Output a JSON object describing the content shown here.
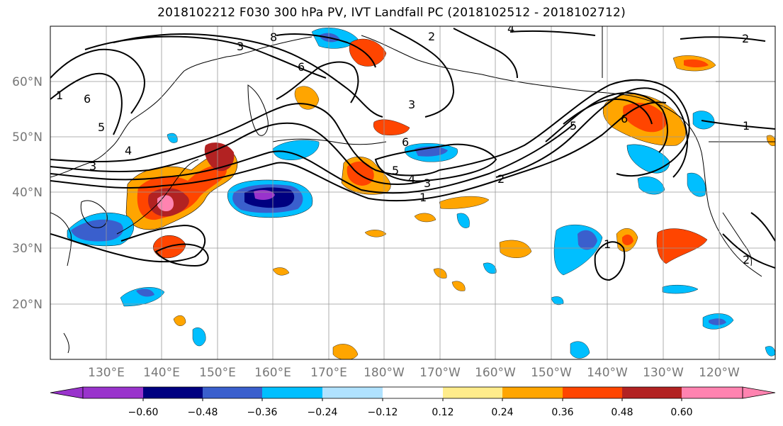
{
  "title": "2018102212 F030 300 hPa PV, IVT Landfall PC (2018102512 - 2018102712)",
  "lat_labels": [
    "60°N",
    "50°N",
    "40°N",
    "30°N",
    "20°N"
  ],
  "lon_labels": [
    "130°E",
    "140°E",
    "150°E",
    "160°E",
    "170°E",
    "180°W",
    "170°W",
    "160°W",
    "150°W",
    "140°W",
    "130°W",
    "120°W"
  ],
  "contour_labels": [
    "2",
    "4",
    "2",
    "3",
    "8",
    "6",
    "3",
    "6",
    "3",
    "5",
    "5",
    "4",
    "3",
    "2",
    "1",
    "6",
    "5",
    "4",
    "1",
    "2",
    "1",
    "6",
    "1"
  ],
  "colorbar": {
    "ticks": [
      "−0.60",
      "−0.48",
      "−0.36",
      "−0.24",
      "−0.12",
      "0.12",
      "0.24",
      "0.36",
      "0.48",
      "0.60"
    ],
    "colors": [
      "#9933cc",
      "#000080",
      "#3a5fcd",
      "#00bfff",
      "#b0e2ff",
      "#ffffff",
      "#ffec8b",
      "#ffa500",
      "#ff4500",
      "#b22222",
      "#ff83b0"
    ]
  },
  "shading_colors": {
    "neg_light": "#b0e2ff",
    "neg_mid": "#00bfff",
    "neg_dark": "#3a5fcd",
    "neg_darker": "#000080",
    "neg_extreme": "#9933cc",
    "pos_light": "#ffec8b",
    "pos_mid": "#ffa500",
    "pos_dark": "#ff4500",
    "pos_darker": "#b22222",
    "pos_extreme": "#ff83b0"
  }
}
